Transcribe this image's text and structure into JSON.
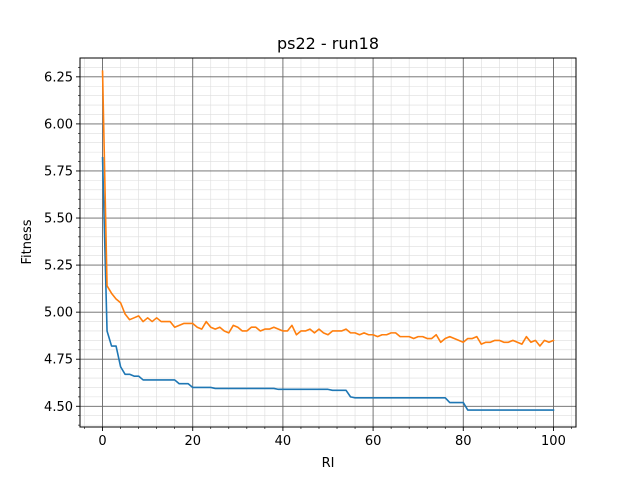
{
  "chart_data": {
    "type": "line",
    "title": "ps22 - run18",
    "xlabel": "RI",
    "ylabel": "Fitness",
    "xlim": [
      -5,
      105
    ],
    "ylim": [
      4.39,
      6.35
    ],
    "x_ticks": [
      0,
      20,
      40,
      60,
      80,
      100
    ],
    "y_ticks": [
      4.5,
      4.75,
      5.0,
      5.25,
      5.5,
      5.75,
      6.0,
      6.25
    ],
    "y_tick_labels": [
      "4.50",
      "4.75",
      "5.00",
      "5.25",
      "5.50",
      "5.75",
      "6.00",
      "6.25"
    ],
    "grid": true,
    "minor_grid": true,
    "series": [
      {
        "color": "#1f77b4",
        "x": [
          0,
          1,
          2,
          3,
          4,
          5,
          6,
          7,
          8,
          9,
          10,
          11,
          12,
          13,
          14,
          15,
          16,
          17,
          18,
          19,
          20,
          21,
          22,
          23,
          24,
          25,
          26,
          27,
          28,
          29,
          30,
          31,
          32,
          33,
          34,
          35,
          36,
          37,
          38,
          39,
          40,
          41,
          42,
          43,
          44,
          45,
          46,
          47,
          48,
          49,
          50,
          51,
          52,
          53,
          54,
          55,
          56,
          57,
          58,
          59,
          60,
          61,
          62,
          63,
          64,
          65,
          66,
          67,
          68,
          69,
          70,
          71,
          72,
          73,
          74,
          75,
          76,
          77,
          78,
          79,
          80,
          81,
          82,
          83,
          84,
          85,
          86,
          87,
          88,
          89,
          90,
          91,
          92,
          93,
          94,
          95,
          96,
          97,
          98,
          99,
          100
        ],
        "values": [
          5.82,
          4.9,
          4.82,
          4.82,
          4.71,
          4.67,
          4.67,
          4.66,
          4.66,
          4.64,
          4.64,
          4.64,
          4.64,
          4.64,
          4.64,
          4.64,
          4.64,
          4.62,
          4.62,
          4.62,
          4.6,
          4.6,
          4.6,
          4.6,
          4.6,
          4.595,
          4.595,
          4.595,
          4.595,
          4.595,
          4.595,
          4.595,
          4.595,
          4.595,
          4.595,
          4.595,
          4.595,
          4.595,
          4.595,
          4.59,
          4.59,
          4.59,
          4.59,
          4.59,
          4.59,
          4.59,
          4.59,
          4.59,
          4.59,
          4.59,
          4.59,
          4.585,
          4.585,
          4.585,
          4.585,
          4.55,
          4.545,
          4.545,
          4.545,
          4.545,
          4.545,
          4.545,
          4.545,
          4.545,
          4.545,
          4.545,
          4.545,
          4.545,
          4.545,
          4.545,
          4.545,
          4.545,
          4.545,
          4.545,
          4.545,
          4.545,
          4.545,
          4.52,
          4.52,
          4.52,
          4.52,
          4.48,
          4.48,
          4.48,
          4.48,
          4.48,
          4.48,
          4.48,
          4.48,
          4.48,
          4.48,
          4.48,
          4.48,
          4.48,
          4.48,
          4.48,
          4.48,
          4.48,
          4.48,
          4.48,
          4.48
        ]
      },
      {
        "color": "#ff7f0e",
        "x": [
          0,
          1,
          2,
          3,
          4,
          5,
          6,
          7,
          8,
          9,
          10,
          11,
          12,
          13,
          14,
          15,
          16,
          17,
          18,
          19,
          20,
          21,
          22,
          23,
          24,
          25,
          26,
          27,
          28,
          29,
          30,
          31,
          32,
          33,
          34,
          35,
          36,
          37,
          38,
          39,
          40,
          41,
          42,
          43,
          44,
          45,
          46,
          47,
          48,
          49,
          50,
          51,
          52,
          53,
          54,
          55,
          56,
          57,
          58,
          59,
          60,
          61,
          62,
          63,
          64,
          65,
          66,
          67,
          68,
          69,
          70,
          71,
          72,
          73,
          74,
          75,
          76,
          77,
          78,
          79,
          80,
          81,
          82,
          83,
          84,
          85,
          86,
          87,
          88,
          89,
          90,
          91,
          92,
          93,
          94,
          95,
          96,
          97,
          98,
          99,
          100
        ],
        "values": [
          6.28,
          5.14,
          5.1,
          5.07,
          5.05,
          4.99,
          4.96,
          4.97,
          4.98,
          4.95,
          4.97,
          4.95,
          4.97,
          4.95,
          4.95,
          4.95,
          4.92,
          4.93,
          4.94,
          4.94,
          4.94,
          4.92,
          4.91,
          4.95,
          4.92,
          4.91,
          4.92,
          4.9,
          4.89,
          4.93,
          4.92,
          4.9,
          4.9,
          4.92,
          4.92,
          4.9,
          4.91,
          4.91,
          4.92,
          4.91,
          4.9,
          4.9,
          4.93,
          4.88,
          4.9,
          4.9,
          4.91,
          4.89,
          4.91,
          4.89,
          4.88,
          4.9,
          4.9,
          4.9,
          4.91,
          4.89,
          4.89,
          4.88,
          4.89,
          4.88,
          4.88,
          4.87,
          4.88,
          4.88,
          4.89,
          4.89,
          4.87,
          4.87,
          4.87,
          4.86,
          4.87,
          4.87,
          4.86,
          4.86,
          4.88,
          4.84,
          4.86,
          4.87,
          4.86,
          4.85,
          4.84,
          4.86,
          4.86,
          4.87,
          4.83,
          4.84,
          4.84,
          4.85,
          4.85,
          4.84,
          4.84,
          4.85,
          4.84,
          4.83,
          4.87,
          4.84,
          4.85,
          4.82,
          4.85,
          4.84,
          4.85
        ]
      }
    ]
  }
}
